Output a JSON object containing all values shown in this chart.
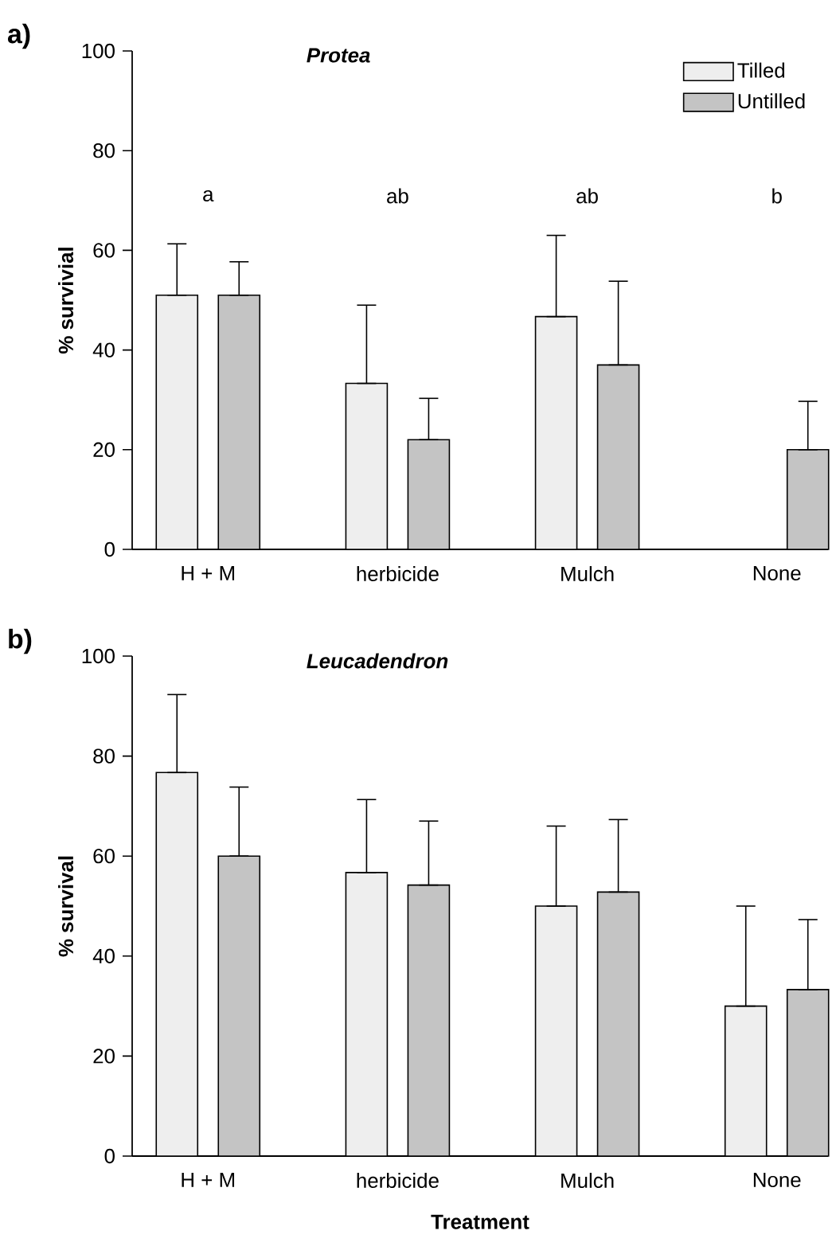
{
  "chart_data": [
    {
      "type": "bar",
      "title": "Protea",
      "ylabel": "% survivial",
      "categories": [
        "H + M",
        "herbicide",
        "Mulch",
        "None"
      ],
      "series": [
        {
          "name": "Tilled",
          "color": "#eeeeee",
          "values": [
            51,
            33.3,
            46.7,
            null
          ],
          "errors": [
            [
              51,
              61.3
            ],
            [
              33.3,
              49
            ],
            [
              46.7,
              63
            ],
            null
          ]
        },
        {
          "name": "Untilled",
          "color": "#c4c4c4",
          "values": [
            51,
            22,
            37,
            20
          ],
          "errors": [
            [
              51,
              57.7
            ],
            [
              22,
              30.3
            ],
            [
              37,
              53.8
            ],
            [
              20,
              29.7
            ]
          ]
        }
      ],
      "ylim": [
        0,
        100
      ],
      "yticks": [
        0,
        20,
        40,
        60,
        80,
        100
      ],
      "legend": "top right",
      "annotations": [
        "a)",
        "a",
        "ab",
        "ab",
        "b"
      ]
    },
    {
      "type": "bar",
      "title": "Leucadendron",
      "ylabel": "% survival",
      "xlabel": "Treatment",
      "categories": [
        "H + M",
        "herbicide",
        "Mulch",
        "None"
      ],
      "series": [
        {
          "color": "#eeeeee",
          "values": [
            76.7,
            56.7,
            50,
            30
          ],
          "errors": [
            [
              76.7,
              92.3
            ],
            [
              56.7,
              71.3
            ],
            [
              50,
              66
            ],
            [
              30,
              50
            ]
          ]
        },
        {
          "color": "#c4c4c4",
          "values": [
            60,
            54.2,
            52.8,
            33.3
          ],
          "errors": [
            [
              60,
              73.8
            ],
            [
              54.2,
              67
            ],
            [
              52.8,
              67.3
            ],
            [
              33.3,
              47.3
            ]
          ]
        }
      ],
      "ylim": [
        0,
        100
      ],
      "yticks": [
        0,
        20,
        40,
        60,
        80,
        100
      ],
      "annotations": [
        "b)"
      ]
    }
  ]
}
